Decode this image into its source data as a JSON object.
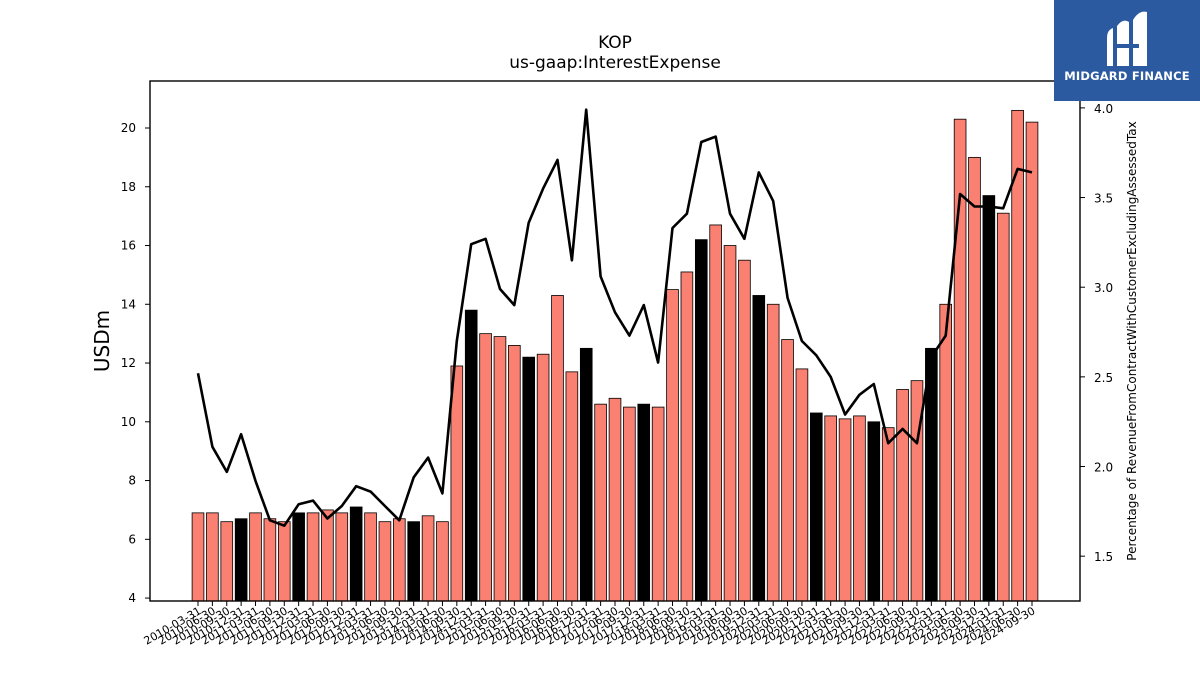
{
  "brand": {
    "name": "MIDGARD FINANCE",
    "color": "#2c5aa0"
  },
  "chart_data": {
    "type": "bar",
    "title": "KOP",
    "subtitle": "us-gaap:InterestExpense",
    "ylabel": "USDm",
    "y2label": "Percentage of RevenueFromContractWithCustomerExcludingAssessedTax",
    "ylim": [
      3.9,
      21.6
    ],
    "y2lim": [
      1.25,
      4.15
    ],
    "yticks": [
      "4",
      "6",
      "8",
      "10",
      "12",
      "14",
      "16",
      "18",
      "20"
    ],
    "y2ticks": [
      "1.5",
      "2.0",
      "2.5",
      "3.0",
      "3.5",
      "4.0"
    ],
    "colors": {
      "bar": "#fa8072",
      "bar_q4": "#000000",
      "line": "#000000"
    },
    "categories": [
      "2010-03-31",
      "2010-06-30",
      "2010-09-30",
      "2010-12-31",
      "2011-03-31",
      "2011-06-30",
      "2011-09-30",
      "2011-12-31",
      "2012-03-31",
      "2012-06-30",
      "2012-09-30",
      "2012-12-31",
      "2013-03-31",
      "2013-06-30",
      "2013-09-30",
      "2013-12-31",
      "2014-03-31",
      "2014-06-30",
      "2014-09-30",
      "2014-12-31",
      "2015-03-31",
      "2015-06-30",
      "2015-09-30",
      "2015-12-31",
      "2016-03-31",
      "2016-06-30",
      "2016-09-30",
      "2016-12-31",
      "2017-03-31",
      "2017-06-30",
      "2017-09-30",
      "2017-12-31",
      "2018-03-31",
      "2018-06-30",
      "2018-09-30",
      "2018-12-31",
      "2019-03-31",
      "2019-06-30",
      "2019-09-30",
      "2019-12-31",
      "2020-03-31",
      "2020-06-30",
      "2020-09-30",
      "2020-12-31",
      "2021-03-31",
      "2021-06-30",
      "2021-09-30",
      "2021-12-31",
      "2022-03-31",
      "2022-06-30",
      "2022-09-30",
      "2022-12-31",
      "2023-03-31",
      "2023-06-30",
      "2023-09-30",
      "2023-12-31",
      "2024-03-31",
      "2024-06-30",
      "2024-09-30"
    ],
    "series": [
      {
        "type": "bar",
        "values": [
          6.9,
          6.9,
          6.6,
          6.7,
          6.9,
          6.7,
          6.6,
          6.9,
          6.9,
          7.0,
          6.9,
          7.1,
          6.9,
          6.6,
          6.7,
          6.6,
          6.8,
          6.6,
          11.9,
          13.8,
          13.0,
          12.9,
          12.6,
          12.2,
          12.3,
          14.3,
          11.7,
          12.5,
          10.6,
          10.8,
          10.5,
          10.6,
          10.5,
          14.5,
          15.1,
          16.2,
          16.7,
          16.0,
          15.5,
          14.3,
          14.0,
          12.8,
          11.8,
          10.3,
          10.2,
          10.1,
          10.2,
          10.0,
          9.8,
          11.1,
          11.4,
          12.5,
          14.0,
          20.3,
          19.0,
          17.7,
          17.1,
          20.6,
          20.2
        ]
      },
      {
        "type": "line",
        "axis": "right",
        "values": [
          2.52,
          2.11,
          1.97,
          2.18,
          1.92,
          1.7,
          1.67,
          1.79,
          1.81,
          1.71,
          1.78,
          1.89,
          1.86,
          1.78,
          1.7,
          1.94,
          2.05,
          1.85,
          2.7,
          3.24,
          3.27,
          2.99,
          2.9,
          3.36,
          3.55,
          3.71,
          3.15,
          3.99,
          3.06,
          2.86,
          2.73,
          2.9,
          2.58,
          3.33,
          3.41,
          3.81,
          3.84,
          3.41,
          3.27,
          3.64,
          3.48,
          2.94,
          2.7,
          2.62,
          2.5,
          2.29,
          2.4,
          2.46,
          2.13,
          2.21,
          2.13,
          2.61,
          2.73,
          3.52,
          3.45,
          3.45,
          3.44,
          3.66,
          3.64
        ]
      }
    ]
  }
}
